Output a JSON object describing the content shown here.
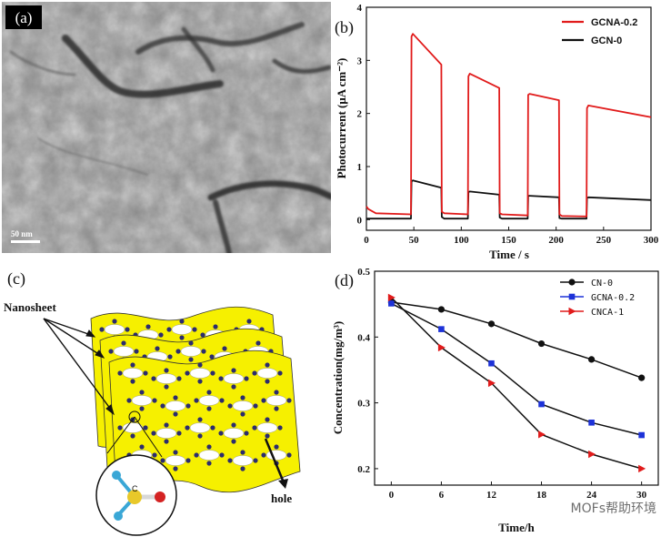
{
  "panels": {
    "a": {
      "label": "(a)",
      "scale_bar": "50 nm"
    },
    "c": {
      "label": "(c)",
      "annotations": {
        "nanosheet": "Nanosheet",
        "hole": "hole",
        "atom_c": "C"
      }
    }
  },
  "watermark": "MOFs帮助环境",
  "colors": {
    "red": "#e11b1b",
    "black": "#111111",
    "blue": "#1d32d8",
    "sheet_yellow": "#f6f000",
    "dot_navy": "#2c2c6e"
  },
  "chart_data": [
    {
      "panel": "b",
      "label": "(b)",
      "type": "line",
      "xlabel": "Time / s",
      "ylabel": "Photocurrent (μA cm⁻²)",
      "xlim": [
        0,
        300
      ],
      "ylim": [
        -0.2,
        4
      ],
      "xticks": [
        0,
        50,
        100,
        150,
        200,
        250,
        300
      ],
      "yticks": [
        0,
        1,
        2,
        3,
        4
      ],
      "legend_position": "top-right",
      "series": [
        {
          "name": "GCNA-0.2",
          "color": "#e11b1b",
          "x": [
            0,
            2,
            10,
            47,
            47.5,
            49,
            79,
            79.5,
            82,
            107,
            107.5,
            109,
            140,
            140.5,
            143,
            170,
            170.5,
            172,
            203,
            203.5,
            206,
            232,
            232.5,
            234,
            300
          ],
          "y": [
            0.25,
            0.2,
            0.12,
            0.1,
            3.45,
            3.5,
            2.92,
            0.15,
            0.12,
            0.1,
            2.7,
            2.75,
            2.48,
            0.12,
            0.1,
            0.08,
            2.35,
            2.37,
            2.25,
            0.1,
            0.07,
            0.06,
            2.1,
            2.15,
            1.93
          ]
        },
        {
          "name": "GCN-0",
          "color": "#111111",
          "x": [
            0,
            47,
            47.5,
            49,
            79,
            79.5,
            82,
            107,
            107.5,
            109,
            140,
            140.5,
            143,
            170,
            170.5,
            172,
            203,
            203.5,
            206,
            232,
            232.5,
            234,
            300
          ],
          "y": [
            0.02,
            0.02,
            0.72,
            0.74,
            0.6,
            0.05,
            0.02,
            0.02,
            0.52,
            0.53,
            0.47,
            0.04,
            0.02,
            0.02,
            0.45,
            0.45,
            0.42,
            0.03,
            0.02,
            0.02,
            0.41,
            0.42,
            0.37
          ]
        }
      ]
    },
    {
      "panel": "d",
      "label": "(d)",
      "type": "line",
      "xlabel": "Time/h",
      "ylabel": "Concentration(mg/m³)",
      "xlim": [
        -2,
        32
      ],
      "ylim": [
        0.175,
        0.5
      ],
      "xticks": [
        0,
        6,
        12,
        18,
        24,
        30
      ],
      "yticks": [
        0.2,
        0.3,
        0.4,
        0.5
      ],
      "legend_position": "top-right",
      "series": [
        {
          "name": "CN-0",
          "color": "#111111",
          "marker": "circle",
          "x": [
            0,
            6,
            12,
            18,
            24,
            30
          ],
          "y": [
            0.453,
            0.442,
            0.42,
            0.39,
            0.366,
            0.338
          ]
        },
        {
          "name": "GCNA-0.2",
          "color": "#1d32d8",
          "marker": "square",
          "x": [
            0,
            6,
            12,
            18,
            24,
            30
          ],
          "y": [
            0.451,
            0.412,
            0.36,
            0.298,
            0.27,
            0.251
          ]
        },
        {
          "name": "CNCA-1",
          "color": "#e11b1b",
          "marker": "triangle",
          "x": [
            0,
            6,
            12,
            18,
            24,
            30
          ],
          "y": [
            0.46,
            0.384,
            0.33,
            0.252,
            0.222,
            0.2
          ]
        }
      ]
    }
  ]
}
